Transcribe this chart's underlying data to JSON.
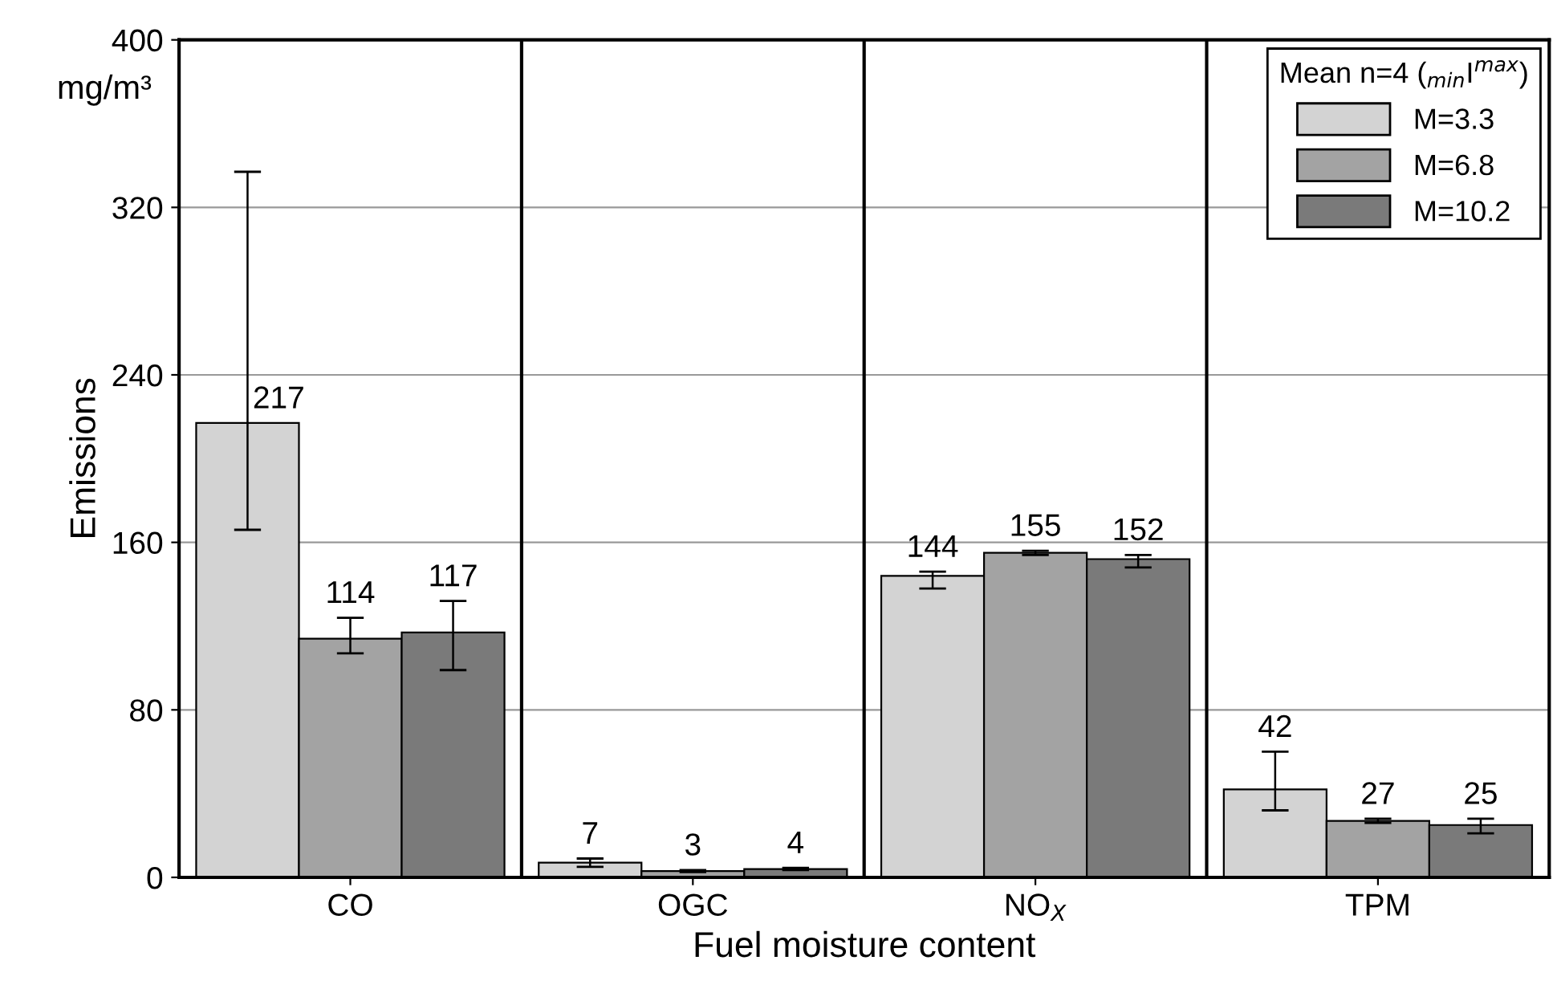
{
  "chart_data": {
    "type": "bar",
    "categories": [
      "CO",
      "OGC",
      "NO$_{X}$",
      "TPM"
    ],
    "ylabel": "Emissions",
    "xlabel": "Fuel moisture content",
    "annotations": [
      "mg/m³"
    ],
    "ylim": [
      0,
      400
    ],
    "yticks": [
      0,
      80,
      160,
      240,
      320,
      400
    ],
    "grid": "y",
    "data_labels": true,
    "legend": "top right",
    "legend_title": "Mean n=4 ($_{min}$I$^{max}$)",
    "series": [
      {
        "name": "M=3.3",
        "color": "#d3d3d3",
        "values": [
          217,
          7,
          144,
          42
        ],
        "errors": [
          [
            166,
            337
          ],
          [
            5,
            9
          ],
          [
            138,
            146
          ],
          [
            32,
            60
          ]
        ]
      },
      {
        "name": "M=6.8",
        "color": "#a3a3a3",
        "values": [
          114,
          3,
          155,
          27
        ],
        "errors": [
          [
            107,
            124
          ],
          [
            2.5,
            3.5
          ],
          [
            154,
            156
          ],
          [
            26,
            28
          ]
        ]
      },
      {
        "name": "M=10.2",
        "color": "#7a7a7a",
        "values": [
          117,
          4,
          152,
          25
        ],
        "errors": [
          [
            99,
            132
          ],
          [
            3.5,
            4.5
          ],
          [
            148,
            154
          ],
          [
            21,
            28
          ]
        ]
      }
    ]
  }
}
